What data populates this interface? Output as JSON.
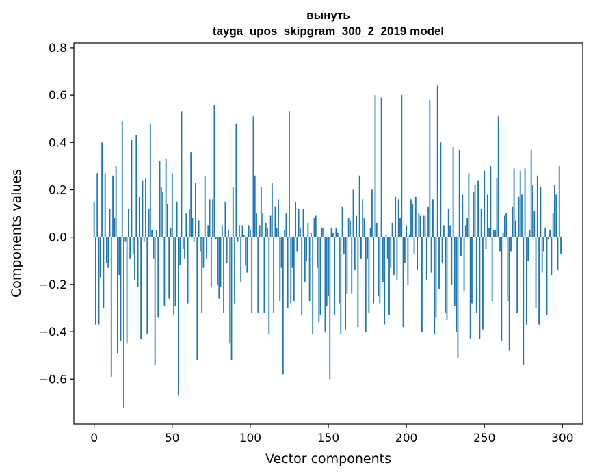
{
  "chart_data": {
    "type": "bar",
    "title_line1": "вынуть",
    "title_line2": "tayga_upos_skipgram_300_2_2019 model",
    "xlabel": "Vector components",
    "ylabel": "Components values",
    "xlim": [
      -13,
      313
    ],
    "ylim": [
      -0.79,
      0.82
    ],
    "xticks": [
      0,
      50,
      100,
      150,
      200,
      250,
      300
    ],
    "yticks": [
      -0.6,
      -0.4,
      -0.2,
      0.0,
      0.2,
      0.4,
      0.6,
      0.8
    ],
    "ytick_labels": [
      "−0.6",
      "−0.4",
      "−0.2",
      "0.0",
      "0.2",
      "0.4",
      "0.6",
      "0.8"
    ],
    "xtick_labels": [
      "0",
      "50",
      "100",
      "150",
      "200",
      "250",
      "300"
    ],
    "bar_color": "#1f77b4",
    "values": [
      0.15,
      -0.37,
      0.27,
      -0.37,
      -0.17,
      0.4,
      -0.3,
      0.27,
      -0.11,
      -0.13,
      0.12,
      -0.59,
      0.26,
      0.08,
      0.3,
      -0.49,
      -0.16,
      -0.44,
      0.49,
      -0.72,
      -0.02,
      -0.45,
      0.12,
      -0.09,
      0.41,
      -0.07,
      -0.18,
      0.43,
      -0.21,
      0.17,
      -0.43,
      0.24,
      -0.02,
      0.25,
      -0.41,
      0.12,
      0.48,
      0.03,
      -0.09,
      -0.54,
      0.03,
      -0.34,
      0.32,
      0.21,
      0.19,
      -0.29,
      0.33,
      0.14,
      -0.26,
      0.04,
      0.27,
      -0.33,
      -0.29,
      0.15,
      -0.67,
      -0.12,
      0.53,
      -0.05,
      -0.09,
      0.1,
      -0.28,
      0.12,
      0.36,
      0.08,
      -0.02,
      0.23,
      -0.52,
      0.07,
      -0.06,
      -0.32,
      -0.13,
      0.26,
      -0.09,
      0.05,
      0.16,
      -0.21,
      0.16,
      0.56,
      -0.01,
      -0.2,
      -0.26,
      -0.21,
      0.05,
      -0.32,
      0.15,
      -0.11,
      0.03,
      -0.45,
      -0.52,
      0.21,
      -0.28,
      0.48,
      -0.02,
      0.05,
      -0.19,
      0.05,
      0.01,
      -0.12,
      -0.15,
      0.05,
      0.03,
      -0.32,
      0.51,
      0.26,
      0.1,
      -0.32,
      0.05,
      0.21,
      0.1,
      -0.32,
      0.06,
      0.04,
      -0.41,
      0.09,
      0.23,
      -0.32,
      0.13,
      0.04,
      0.16,
      -0.27,
      -0.13,
      -0.58,
      0.03,
      0.1,
      -0.3,
      0.53,
      -0.28,
      -0.13,
      -0.27,
      0.15,
      -0.06,
      0.12,
      0.04,
      -0.33,
      0.12,
      -0.19,
      -0.1,
      0.06,
      -0.27,
      0.02,
      -0.41,
      0.08,
      0.09,
      -0.13,
      -0.36,
      -0.33,
      0.04,
      0.04,
      -0.4,
      -0.29,
      -0.25,
      -0.6,
      0.04,
      0.02,
      -0.33,
      0.04,
      0.02,
      -0.28,
      -0.41,
      0.13,
      -0.07,
      -0.39,
      -0.24,
      0.08,
      0.07,
      -0.24,
      0.2,
      -0.14,
      0.09,
      -0.38,
      0.26,
      -0.09,
      0.16,
      0.08,
      -0.4,
      -0.09,
      -0.32,
      0.04,
      0.2,
      -0.28,
      0.6,
      0.06,
      -0.25,
      -0.28,
      0.59,
      -0.19,
      -0.37,
      0.01,
      -0.09,
      -0.33,
      -0.13,
      0.06,
      -0.16,
      0.17,
      -0.18,
      0.16,
      0.08,
      0.6,
      -0.38,
      -0.11,
      0.05,
      -0.2,
      0.01,
      0.16,
      0.14,
      -0.07,
      0.17,
      -0.14,
      0.1,
      0.09,
      -0.4,
      0.09,
      0.09,
      -0.18,
      0.13,
      0.58,
      -0.15,
      0.16,
      -0.41,
      -0.34,
      0.64,
      -0.22,
      0.4,
      -0.11,
      0.05,
      -0.32,
      -0.35,
      0.12,
      0.05,
      -0.2,
      0.38,
      -0.29,
      -0.4,
      -0.51,
      0.37,
      -0.08,
      0.18,
      -0.23,
      0.05,
      0.08,
      0.27,
      -0.43,
      -0.28,
      0.19,
      0.22,
      -0.32,
      0.24,
      -0.43,
      0.12,
      -0.39,
      0.28,
      -0.05,
      0.18,
      0.04,
      0.3,
      -0.27,
      0.03,
      0.03,
      0.25,
      0.51,
      -0.06,
      -0.44,
      0.02,
      0.09,
      0.1,
      -0.27,
      -0.48,
      -0.06,
      0.13,
      0.29,
      0.07,
      -0.32,
      0.17,
      0.28,
      0.18,
      -0.54,
      0.29,
      -0.37,
      -0.1,
      0.03,
      0.37,
      0.22,
      0.11,
      -0.3,
      0.26,
      -0.37,
      0.21,
      -0.15,
      -0.06,
      0.04,
      -0.33,
      -0.01,
      0.03,
      -0.16,
      0.1,
      0.22,
      0.18,
      -0.14,
      0.3,
      -0.07
    ]
  }
}
